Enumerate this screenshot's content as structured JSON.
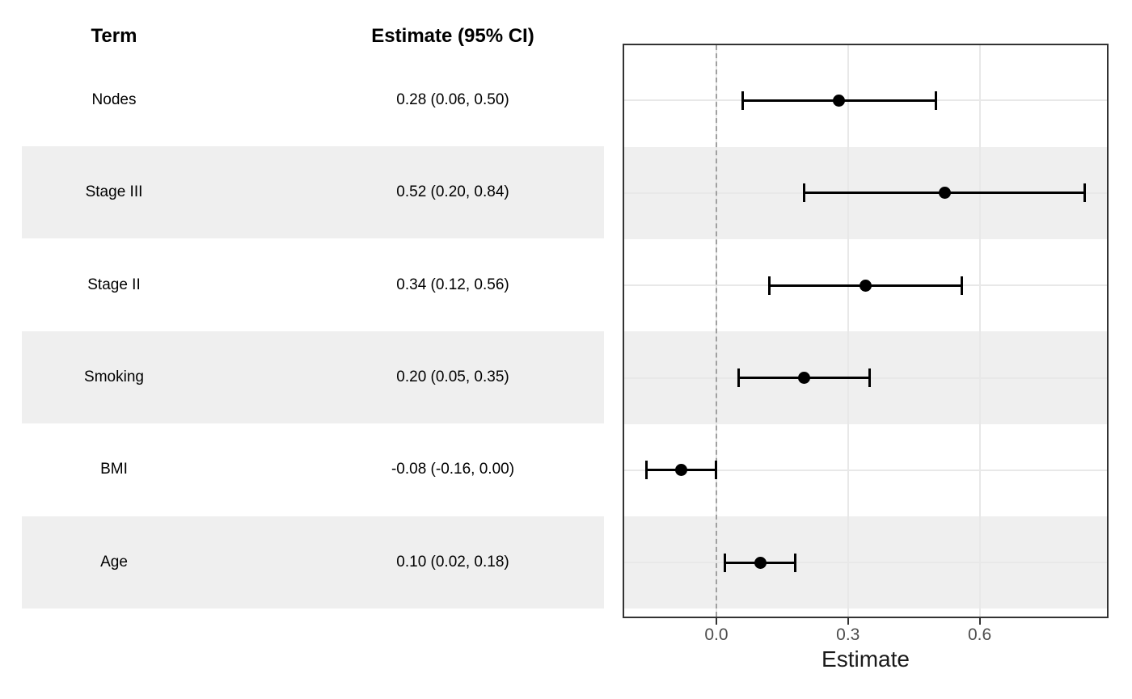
{
  "table": {
    "header": {
      "term": "Term",
      "estimate": "Estimate (95% CI)"
    },
    "rows": [
      {
        "term": "Nodes",
        "estimate_ci": "0.28 (0.06, 0.50)"
      },
      {
        "term": "Stage III",
        "estimate_ci": "0.52 (0.20, 0.84)"
      },
      {
        "term": "Stage II",
        "estimate_ci": "0.34 (0.12, 0.56)"
      },
      {
        "term": "Smoking",
        "estimate_ci": "0.20 (0.05, 0.35)"
      },
      {
        "term": "BMI",
        "estimate_ci": "-0.08 (-0.16, 0.00)"
      },
      {
        "term": "Age",
        "estimate_ci": "0.10 (0.02, 0.18)"
      }
    ]
  },
  "chart_data": {
    "type": "scatter",
    "subtype": "forest-plot",
    "title": "",
    "xlabel": "Estimate",
    "categories": [
      "Nodes",
      "Stage III",
      "Stage II",
      "Smoking",
      "BMI",
      "Age"
    ],
    "series": [
      {
        "name": "Estimate (95% CI)",
        "points": [
          {
            "term": "Nodes",
            "est": 0.28,
            "lo": 0.06,
            "hi": 0.5
          },
          {
            "term": "Stage III",
            "est": 0.52,
            "lo": 0.2,
            "hi": 0.84
          },
          {
            "term": "Stage II",
            "est": 0.34,
            "lo": 0.12,
            "hi": 0.56
          },
          {
            "term": "Smoking",
            "est": 0.2,
            "lo": 0.05,
            "hi": 0.35
          },
          {
            "term": "BMI",
            "est": -0.08,
            "lo": -0.16,
            "hi": 0.0
          },
          {
            "term": "Age",
            "est": 0.1,
            "lo": 0.02,
            "hi": 0.18
          }
        ]
      }
    ],
    "xlim": [
      -0.21,
      0.89
    ],
    "x_ticks": [
      0.0,
      0.3,
      0.6
    ],
    "x_tick_labels": [
      "0.0",
      "0.3",
      "0.6"
    ],
    "reference_line": 0.0,
    "grid": true,
    "legend_position": "none",
    "striped_row_indices": [
      1,
      3,
      5
    ]
  },
  "colors": {
    "stripe": "#efefef",
    "gridline": "#e8e8e8",
    "panel_border": "#333333",
    "reference_dashed": "#a0a0a0",
    "point": "#000000",
    "tick_label": "#4d4d4d",
    "axis_title": "#1a1a1a"
  }
}
